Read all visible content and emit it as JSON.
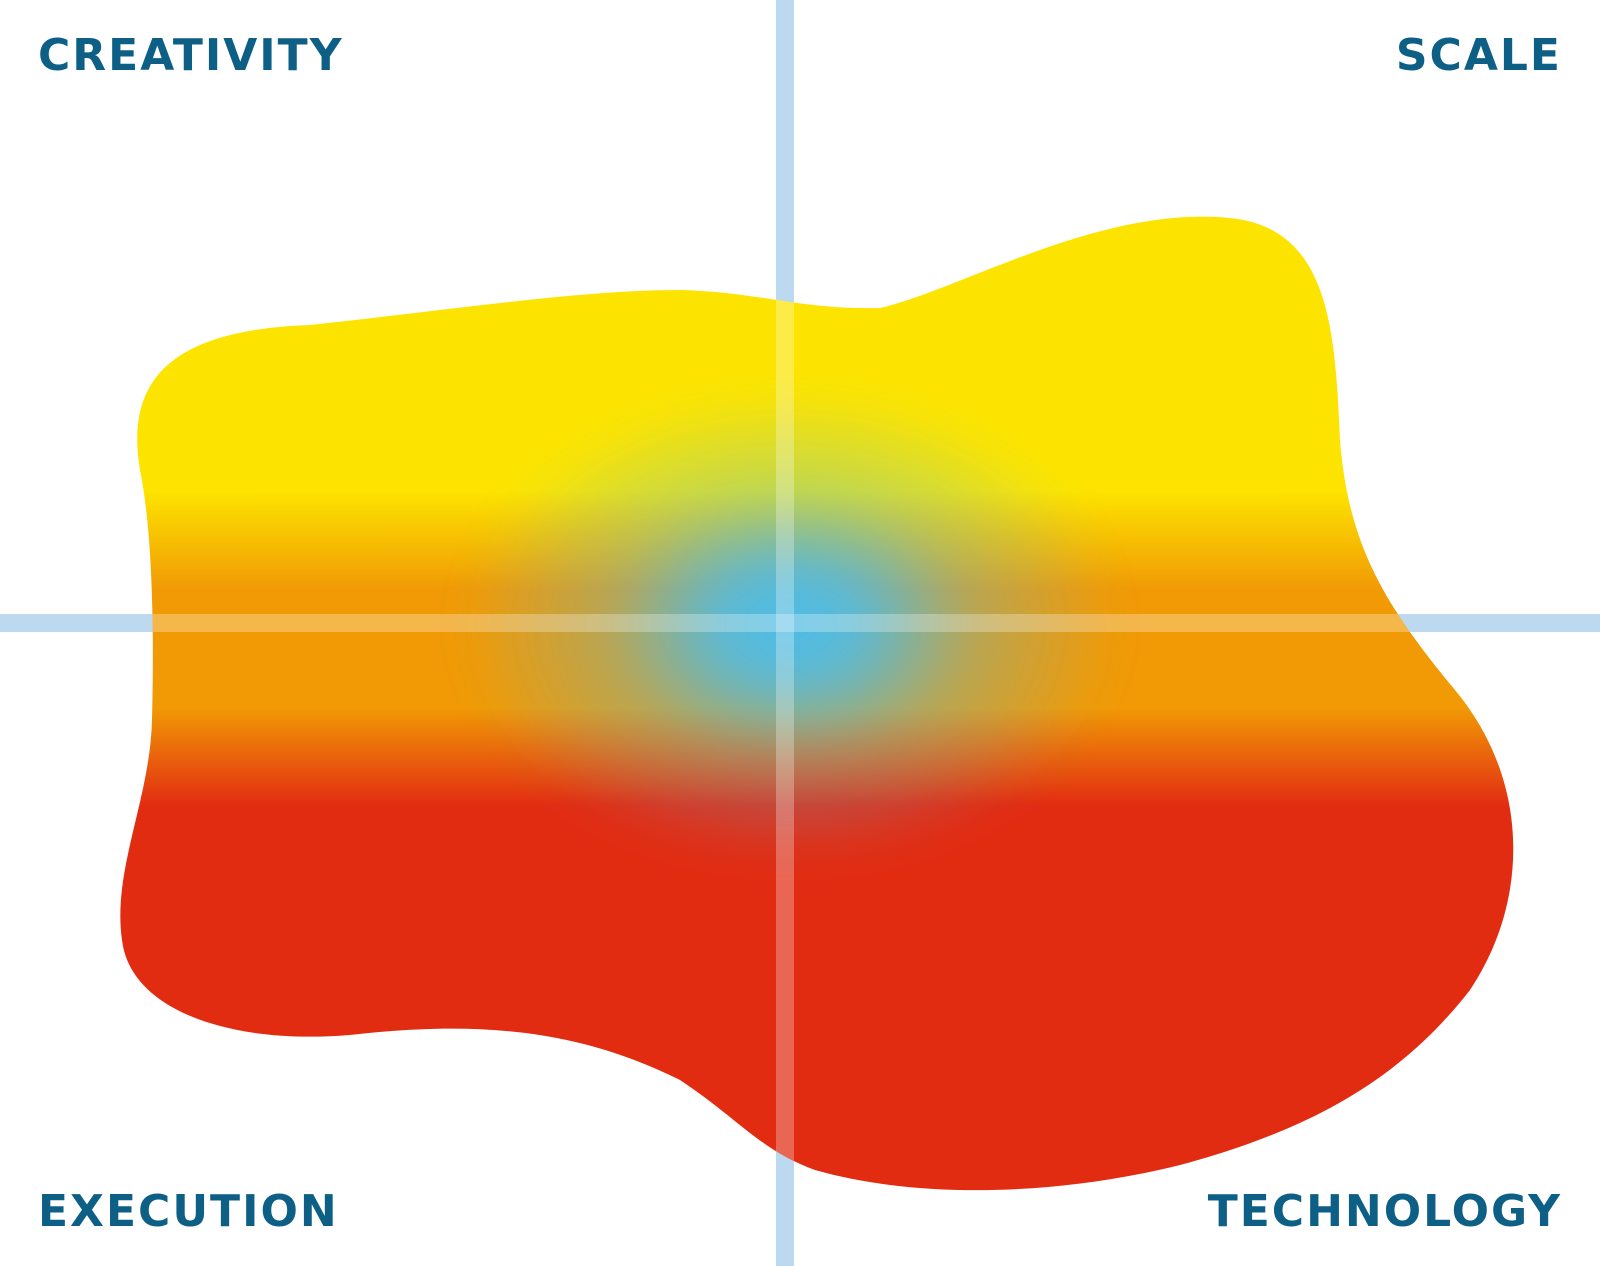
{
  "colors": {
    "label": "#0e5f85",
    "axis": "#bcd9f0",
    "yellow": "#fde400",
    "orange": "#f19a05",
    "red": "#e22c12",
    "blue": "#4cbdea"
  },
  "quadrants": {
    "top_left": "CREATIVITY",
    "top_right": "SCALE",
    "bottom_left": "EXECUTION",
    "bottom_right": "TECHNOLOGY"
  }
}
